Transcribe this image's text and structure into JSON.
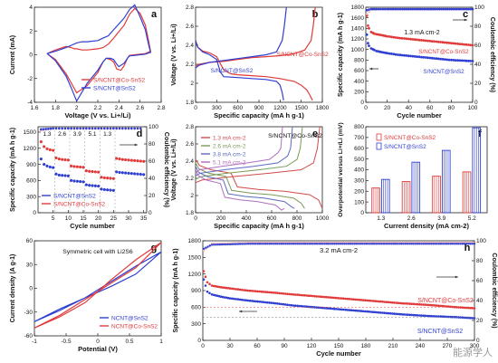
{
  "watermark": "能源学人",
  "colors": {
    "red": "#e03a3a",
    "blue": "#2f3fd0",
    "pink": "#f2a1a1",
    "lightblue": "#7f90e6",
    "arrow": "#333333"
  },
  "chart_data": [
    {
      "panel": "a",
      "type": "line",
      "xlabel": "Voltage (V vs. Li+/Li)",
      "ylabel": "Current (mA)",
      "xlim": [
        1.6,
        2.8
      ],
      "ylim": [
        -4,
        4
      ],
      "xticks": [
        1.6,
        1.8,
        2.0,
        2.2,
        2.4,
        2.6,
        2.8
      ],
      "yticks": [
        -4,
        -2,
        0,
        2,
        4
      ],
      "series": [
        {
          "name": "S/NCNT@Co-SnS2",
          "color": "red",
          "x": [
            1.72,
            1.8,
            1.9,
            1.95,
            1.98,
            2.0,
            2.05,
            2.1,
            2.2,
            2.25,
            2.3,
            2.35,
            2.45,
            2.5,
            2.55,
            2.6,
            2.65,
            2.68,
            2.7,
            2.65,
            2.6,
            2.55,
            2.5,
            2.48,
            2.45,
            2.42,
            2.38,
            2.35,
            2.32,
            2.28,
            2.25,
            2.2,
            2.1,
            2.0,
            1.9,
            1.8,
            1.72
          ],
          "y": [
            0.1,
            0.4,
            0.7,
            0.6,
            0.5,
            0.5,
            0.4,
            0.4,
            0.5,
            0.6,
            0.9,
            1.4,
            2.5,
            3.4,
            3.9,
            3.5,
            2.5,
            1.2,
            0.3,
            0.1,
            0.05,
            0.0,
            -0.05,
            -0.3,
            -0.9,
            -1.3,
            -1.2,
            -0.6,
            -0.4,
            -0.3,
            -0.6,
            -1.5,
            -2.6,
            -3.2,
            -1.6,
            -0.4,
            0.1
          ]
        },
        {
          "name": "S/NCNT@SnS2",
          "color": "blue",
          "x": [
            1.72,
            1.8,
            1.9,
            1.95,
            2.0,
            2.05,
            2.1,
            2.2,
            2.25,
            2.3,
            2.35,
            2.45,
            2.5,
            2.55,
            2.6,
            2.65,
            2.68,
            2.7,
            2.65,
            2.6,
            2.55,
            2.5,
            2.48,
            2.45,
            2.4,
            2.38,
            2.35,
            2.32,
            2.28,
            2.25,
            2.2,
            2.1,
            2.0,
            1.95,
            1.9,
            1.8,
            1.72
          ],
          "y": [
            0.1,
            0.3,
            0.6,
            0.8,
            1.0,
            1.1,
            1.1,
            1.2,
            1.4,
            1.6,
            2.1,
            3.1,
            3.8,
            4.2,
            3.2,
            2.1,
            0.9,
            0.2,
            0.05,
            0.0,
            -0.05,
            -0.1,
            -0.3,
            -0.7,
            -1.0,
            -0.8,
            -0.4,
            -0.3,
            -0.3,
            -0.6,
            -1.3,
            -2.4,
            -3.9,
            -2.8,
            -1.8,
            -0.5,
            0.1
          ]
        }
      ]
    },
    {
      "panel": "b",
      "type": "line",
      "xlabel": "Specific capacity (mA h g-1)",
      "ylabel": "Voltage (V vs. Li+/Li)",
      "xlim": [
        0,
        1800
      ],
      "ylim": [
        1.8,
        2.8
      ],
      "xticks": [
        0,
        300,
        600,
        900,
        1200,
        1500,
        1800
      ],
      "yticks": [
        1.8,
        2.0,
        2.2,
        2.4,
        2.6,
        2.8
      ],
      "annotations": [
        "S/NCNT@Co-SnS2",
        "S/NCNT@SnS2"
      ],
      "series": [
        {
          "name": "S/NCNT@Co-SnS2 discharge",
          "color": "red",
          "x": [
            0,
            30,
            100,
            200,
            300,
            400,
            500,
            600,
            800,
            1000,
            1200,
            1400,
            1500,
            1580,
            1620,
            1660
          ],
          "y": [
            2.45,
            2.38,
            2.34,
            2.32,
            2.28,
            2.14,
            2.1,
            2.09,
            2.08,
            2.07,
            2.05,
            2.02,
            1.98,
            1.93,
            1.88,
            1.82
          ]
        },
        {
          "name": "S/NCNT@Co-SnS2 charge",
          "color": "red",
          "x": [
            0,
            50,
            200,
            400,
            600,
            800,
            1000,
            1200,
            1400,
            1550,
            1640,
            1670,
            1700
          ],
          "y": [
            2.18,
            2.2,
            2.22,
            2.23,
            2.25,
            2.27,
            2.28,
            2.29,
            2.31,
            2.35,
            2.45,
            2.6,
            2.8
          ]
        },
        {
          "name": "S/NCNT@SnS2 discharge",
          "color": "blue",
          "x": [
            0,
            30,
            100,
            200,
            300,
            350,
            400,
            600,
            800,
            1000,
            1150,
            1200,
            1230,
            1250
          ],
          "y": [
            2.45,
            2.38,
            2.33,
            2.3,
            2.25,
            2.12,
            2.07,
            2.06,
            2.05,
            2.04,
            2.02,
            1.98,
            1.9,
            1.82
          ]
        },
        {
          "name": "S/NCNT@SnS2 charge",
          "color": "blue",
          "x": [
            0,
            50,
            200,
            400,
            600,
            800,
            1000,
            1150,
            1230,
            1260,
            1290
          ],
          "y": [
            2.16,
            2.19,
            2.22,
            2.24,
            2.26,
            2.28,
            2.3,
            2.33,
            2.45,
            2.6,
            2.8
          ]
        }
      ]
    },
    {
      "panel": "c",
      "type": "scatter",
      "xlabel": "Cycle number",
      "ylabel": "Specific capacity (mA h g-1)",
      "y2label": "Coulombic efficiency (%)",
      "xlim": [
        0,
        100
      ],
      "ylim": [
        0,
        1800
      ],
      "y2lim": [
        0,
        100
      ],
      "xticks": [
        0,
        20,
        40,
        60,
        80,
        100
      ],
      "yticks": [
        0,
        200,
        400,
        600,
        800,
        1000,
        1200,
        1400,
        1600,
        1800
      ],
      "y2ticks": [
        0,
        20,
        40,
        60,
        80,
        100
      ],
      "annotation": "1.3 mA cm-2",
      "series": [
        {
          "name": "S/NCNT@Co-SnS2",
          "color": "red",
          "x": [
            1,
            2,
            3,
            5,
            8,
            10,
            15,
            20,
            30,
            40,
            50,
            60,
            70,
            80,
            90,
            100
          ],
          "y": [
            1640,
            1450,
            1400,
            1330,
            1300,
            1290,
            1270,
            1250,
            1220,
            1200,
            1180,
            1160,
            1140,
            1120,
            1100,
            1080
          ]
        },
        {
          "name": "S/NCNT@SnS2",
          "color": "blue",
          "x": [
            1,
            2,
            3,
            5,
            8,
            10,
            15,
            20,
            30,
            40,
            50,
            60,
            70,
            80,
            90,
            100
          ],
          "y": [
            1280,
            1120,
            1070,
            1020,
            990,
            970,
            950,
            930,
            900,
            880,
            860,
            840,
            820,
            800,
            790,
            780
          ]
        },
        {
          "name": "CE Co-SnS2",
          "axis": "y2",
          "color": "pink",
          "x": [
            1,
            5,
            10,
            20,
            40,
            60,
            80,
            100
          ],
          "y": [
            93,
            98,
            98,
            98,
            98,
            98,
            98,
            98
          ]
        },
        {
          "name": "CE SnS2",
          "axis": "y2",
          "color": "blue",
          "x": [
            1,
            5,
            10,
            20,
            40,
            60,
            80,
            100
          ],
          "y": [
            97,
            98,
            98,
            98,
            98,
            98,
            98,
            98
          ]
        }
      ]
    },
    {
      "panel": "d",
      "type": "scatter",
      "xlabel": "Cycle number",
      "ylabel": "Specific capacity (mA h g-1)",
      "y2label": "Coulombic efficiency (%)",
      "xlim": [
        0,
        36
      ],
      "ylim": [
        0,
        1600
      ],
      "y2lim": [
        0,
        100
      ],
      "xticks": [
        5,
        10,
        15,
        20,
        25,
        30,
        35
      ],
      "yticks": [
        0,
        300,
        600,
        900,
        1200,
        1500
      ],
      "y2ticks": [
        0,
        20,
        40,
        60,
        80,
        100
      ],
      "rate_labels": [
        "1.3",
        "2.6",
        "3.9",
        "5.1",
        "1.3"
      ],
      "series": [
        {
          "name": "S/NCNT@Co-SnS2",
          "color": "red",
          "x": [
            1,
            2,
            3,
            4,
            5,
            6,
            7,
            8,
            9,
            10,
            11,
            12,
            13,
            14,
            15,
            16,
            17,
            18,
            19,
            20,
            21,
            22,
            23,
            24,
            25,
            26,
            27,
            28,
            29,
            30,
            31,
            32,
            33,
            34,
            35
          ],
          "y": [
            1320,
            1230,
            1190,
            1170,
            1160,
            1020,
            1000,
            990,
            985,
            980,
            870,
            860,
            855,
            850,
            845,
            780,
            770,
            765,
            760,
            755,
            660,
            650,
            645,
            640,
            635,
            1010,
            1000,
            990,
            985,
            980,
            975,
            970,
            965,
            960,
            955
          ]
        },
        {
          "name": "S/NCNT@SnS2",
          "color": "blue",
          "x": [
            1,
            2,
            3,
            4,
            5,
            6,
            7,
            8,
            9,
            10,
            11,
            12,
            13,
            14,
            15,
            16,
            17,
            18,
            19,
            20,
            21,
            22,
            23,
            24,
            25,
            26,
            27,
            28,
            29,
            30,
            31,
            32,
            33,
            34,
            35
          ],
          "y": [
            1000,
            900,
            870,
            850,
            840,
            720,
            700,
            695,
            690,
            685,
            600,
            590,
            585,
            580,
            575,
            520,
            510,
            505,
            500,
            495,
            440,
            430,
            425,
            420,
            415,
            760,
            750,
            745,
            740,
            735,
            730,
            725,
            720,
            715,
            710
          ]
        },
        {
          "name": "CE Co-SnS2",
          "axis": "y2",
          "color": "pink",
          "x": [
            1,
            5,
            10,
            15,
            20,
            25,
            30,
            35
          ],
          "y": [
            96,
            98,
            98,
            98,
            98,
            98,
            98,
            98
          ]
        },
        {
          "name": "CE SnS2",
          "axis": "y2",
          "color": "blue",
          "x": [
            1,
            5,
            10,
            15,
            20,
            25,
            30,
            35
          ],
          "y": [
            97,
            98,
            98,
            98,
            98,
            98,
            98,
            98
          ]
        }
      ]
    },
    {
      "panel": "e",
      "type": "line",
      "xlabel": "Specific capacity (mA h g-1)",
      "ylabel": "Voltage (V vs. Li+/Li)",
      "xlim": [
        0,
        1000
      ],
      "ylim": [
        1.8,
        2.8
      ],
      "xticks": [
        0,
        200,
        400,
        600,
        800,
        1000
      ],
      "yticks": [
        1.8,
        2.0,
        2.2,
        2.4,
        2.6,
        2.8
      ],
      "annotation": "S/NCNT@Co-SnS2",
      "legend": [
        "1.3 mA cm-2",
        "2.6 mA cm-2",
        "3.8 mA cm-2",
        "5.1 mA cm-2"
      ],
      "series": [
        {
          "name": "1.3 mA cm-2",
          "color": "#d24a4a",
          "capacity": 1000
        },
        {
          "name": "2.6 mA cm-2",
          "color": "#7a9b57",
          "capacity": 860
        },
        {
          "name": "3.8 mA cm-2",
          "color": "#5a6abf",
          "capacity": 780
        },
        {
          "name": "5.1 mA cm-2",
          "color": "#b06fbd",
          "capacity": 700
        }
      ]
    },
    {
      "panel": "f",
      "type": "bar",
      "xlabel": "Current density (mA cm-2)",
      "ylabel": "Overpotential versus Li+/Li (mV)",
      "categories": [
        "1.3",
        "2.6",
        "3.9",
        "5.2"
      ],
      "ylim": [
        0,
        800
      ],
      "yticks": [
        0,
        100,
        200,
        300,
        400,
        500,
        600,
        700,
        800
      ],
      "series": [
        {
          "name": "S/NCNT@Co-SnS2",
          "color": "red",
          "values": [
            230,
            290,
            340,
            380
          ]
        },
        {
          "name": "S/NCNT@SnS2",
          "color": "blue",
          "values": [
            310,
            470,
            580,
            790
          ]
        }
      ]
    },
    {
      "panel": "g",
      "type": "line",
      "xlabel": "Potential (V)",
      "ylabel": "Current density (A g-1)",
      "xlim": [
        -1.0,
        1.0
      ],
      "ylim": [
        -60,
        60
      ],
      "xticks": [
        -1.0,
        -0.5,
        0.0,
        0.5,
        1.0
      ],
      "yticks": [
        -60,
        -30,
        0,
        30,
        60
      ],
      "annotation": "Symmetric cell with Li2S6",
      "series": [
        {
          "name": "NCNT@SnS2",
          "color": "blue",
          "x": [
            -1.0,
            -0.6,
            -0.2,
            0.2,
            0.6,
            1.0,
            0.6,
            0.2,
            -0.2,
            -0.6,
            -1.0
          ],
          "y": [
            -42,
            -28,
            -12,
            8,
            28,
            46,
            18,
            2,
            -12,
            -26,
            -42
          ]
        },
        {
          "name": "NCNT@Co-SnS2",
          "color": "red",
          "x": [
            -1.0,
            -0.6,
            -0.2,
            0.2,
            0.6,
            1.0,
            0.6,
            0.2,
            -0.2,
            -0.6,
            -1.0
          ],
          "y": [
            -50,
            -36,
            -18,
            10,
            36,
            58,
            26,
            6,
            -14,
            -34,
            -50
          ]
        }
      ]
    },
    {
      "panel": "h",
      "type": "scatter",
      "xlabel": "Cycle number",
      "ylabel": "Specific capacity (mA h g-1)",
      "y2label": "Coulombic efficiency (%)",
      "xlim": [
        0,
        300
      ],
      "ylim": [
        0,
        1800
      ],
      "y2lim": [
        0,
        100
      ],
      "xticks": [
        0,
        30,
        60,
        90,
        120,
        150,
        180,
        210,
        240,
        270,
        300
      ],
      "yticks": [
        0,
        300,
        600,
        900,
        1200,
        1500,
        1800
      ],
      "y2ticks": [
        0,
        20,
        40,
        60,
        80,
        100
      ],
      "annotation": "3.2 mA cm-2",
      "series": [
        {
          "name": "S/NCNT@Co-SnS2",
          "color": "red",
          "x": [
            1,
            5,
            10,
            20,
            30,
            50,
            80,
            100,
            130,
            160,
            190,
            220,
            250,
            280,
            300
          ],
          "y": [
            1250,
            1050,
            990,
            960,
            940,
            900,
            860,
            830,
            790,
            750,
            710,
            670,
            640,
            600,
            580
          ]
        },
        {
          "name": "S/NCNT@SnS2",
          "color": "blue",
          "x": [
            1,
            5,
            10,
            20,
            30,
            50,
            80,
            100,
            130,
            160,
            190,
            220,
            250,
            280,
            300
          ],
          "y": [
            1100,
            880,
            830,
            790,
            760,
            720,
            670,
            630,
            590,
            550,
            510,
            470,
            440,
            420,
            400
          ]
        },
        {
          "name": "CE Co-SnS2",
          "axis": "y2",
          "color": "pink",
          "x": [
            1,
            10,
            50,
            100,
            150,
            200,
            250,
            300
          ],
          "y": [
            90,
            97,
            98,
            98,
            98,
            98,
            98,
            98
          ]
        },
        {
          "name": "CE SnS2",
          "axis": "y2",
          "color": "blue",
          "x": [
            1,
            10,
            50,
            100,
            150,
            200,
            250,
            300
          ],
          "y": [
            92,
            96,
            97,
            97,
            97,
            97,
            97,
            97
          ]
        }
      ]
    }
  ]
}
